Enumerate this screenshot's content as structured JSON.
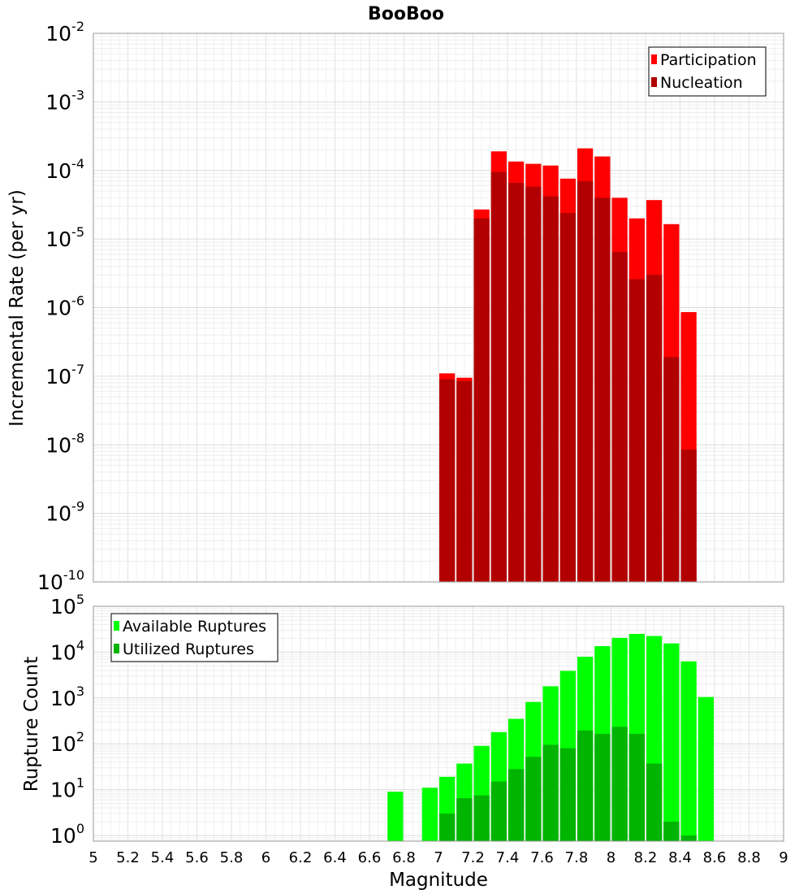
{
  "chart_data": [
    {
      "type": "bar",
      "title": "BooBoo",
      "ylabel": "Incremental Rate (per yr)",
      "xlabel": "",
      "yscale": "log",
      "ylim": [
        1e-10,
        0.01
      ],
      "xlim": [
        5,
        9
      ],
      "y_tick_mantissa": "10",
      "y_tick_exponents": [
        "-10",
        "-9",
        "-8",
        "-7",
        "-6",
        "-5",
        "-4",
        "-3",
        "-2"
      ],
      "grid": true,
      "legend_position": "top-right",
      "bar_width": 0.1,
      "x": [
        7.05,
        7.15,
        7.25,
        7.35,
        7.45,
        7.55,
        7.65,
        7.75,
        7.85,
        7.95,
        8.05,
        8.15,
        8.25,
        8.35,
        8.45
      ],
      "series": [
        {
          "name": "Participation",
          "color": "#ff0000",
          "values": [
            1.1e-07,
            9.5e-08,
            2.7e-05,
            0.00019,
            0.000135,
            0.000125,
            0.000118,
            7.6e-05,
            0.00021,
            0.00016,
            4e-05,
            2e-05,
            3.7e-05,
            1.65e-05,
            8.6e-07
          ]
        },
        {
          "name": "Nucleation",
          "color": "#b20000",
          "values": [
            9e-08,
            8.5e-08,
            2e-05,
            9.5e-05,
            6.6e-05,
            5.8e-05,
            4.2e-05,
            2.4e-05,
            7e-05,
            4e-05,
            6.5e-06,
            2.6e-06,
            3e-06,
            1.9e-07,
            8.5e-09
          ]
        }
      ]
    },
    {
      "type": "bar",
      "title": "",
      "xlabel": "Magnitude",
      "ylabel": "Rupture Count",
      "yscale": "log",
      "ylim": [
        0.75,
        100000
      ],
      "xlim": [
        5,
        9
      ],
      "y_tick_mantissa": "10",
      "y_tick_exponents": [
        "0",
        "1",
        "2",
        "3",
        "4",
        "5"
      ],
      "x_ticks": [
        "5",
        "5.2",
        "5.4",
        "5.6",
        "5.8",
        "6",
        "6.2",
        "6.4",
        "6.6",
        "6.8",
        "7",
        "7.2",
        "7.4",
        "7.6",
        "7.8",
        "8",
        "8.2",
        "8.4",
        "8.6",
        "8.8",
        "9"
      ],
      "grid": true,
      "legend_position": "top-left",
      "bar_width": 0.1,
      "series": [
        {
          "name": "Available Ruptures",
          "color": "#00ff00",
          "x": [
            6.75,
            6.95,
            7.05,
            7.15,
            7.25,
            7.35,
            7.45,
            7.55,
            7.65,
            7.75,
            7.85,
            7.95,
            8.05,
            8.15,
            8.25,
            8.35,
            8.45,
            8.55
          ],
          "values": [
            9,
            11,
            19,
            37,
            90,
            180,
            350,
            820,
            1800,
            3900,
            7900,
            13500,
            20500,
            25000,
            22500,
            15500,
            6300,
            1050
          ]
        },
        {
          "name": "Utilized Ruptures",
          "color": "#00b400",
          "x": [
            7.05,
            7.15,
            7.25,
            7.35,
            7.45,
            7.55,
            7.65,
            7.75,
            7.85,
            7.95,
            8.05,
            8.15,
            8.25,
            8.35,
            8.45
          ],
          "values": [
            3,
            6.5,
            7.5,
            15,
            28,
            52,
            95,
            80,
            195,
            165,
            235,
            165,
            37,
            2,
            1
          ]
        }
      ]
    }
  ]
}
